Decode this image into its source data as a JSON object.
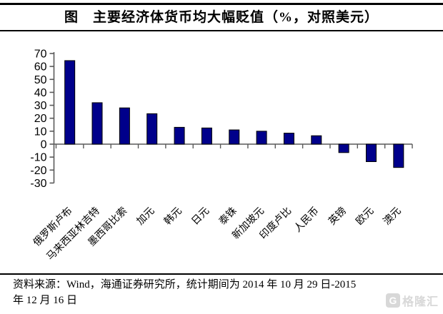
{
  "figure": {
    "title": "图　主要经济体货币均大幅贬值（%，对照美元）"
  },
  "chart_data": {
    "type": "bar",
    "title": "主要经济体货币均大幅贬值（%，对照美元）",
    "categories": [
      "俄罗斯卢布",
      "马来西亚林吉特",
      "墨西哥比索",
      "加元",
      "韩元",
      "日元",
      "泰铢",
      "新加坡元",
      "印度卢比",
      "人民币",
      "英镑",
      "欧元",
      "澳元"
    ],
    "values": [
      64.5,
      32,
      28,
      23.5,
      13,
      12.5,
      11,
      10,
      8.5,
      6.5,
      -6.5,
      -13.5,
      -18
    ],
    "unit": "%",
    "xlabel": "",
    "ylabel": "",
    "ylim": [
      -30,
      70
    ],
    "ytick_step": 10,
    "grid": false,
    "legend": "none",
    "bar_color": "#00008B",
    "bar_border_color": "#000000",
    "axis_color": "#5a5a5a",
    "tick_label_color": "#000000"
  },
  "footer": {
    "lines": [
      "资料来源：Wind，海通证券研究所，统计期间为 2014 年 10 月 29 日-2015",
      "年 12 月 16 日"
    ]
  },
  "watermark": {
    "icon_letter": "G",
    "text": "格隆汇",
    "color": "#d8d8d8"
  }
}
